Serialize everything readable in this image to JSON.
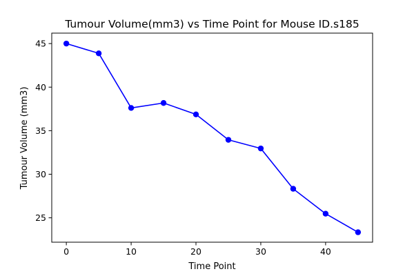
{
  "chart_data": {
    "type": "line",
    "title": "Tumour Volume(mm3) vs Time Point for Mouse ID.s185",
    "xlabel": "Time Point",
    "ylabel": "Tumour Volume (mm3)",
    "xlim": [
      -2.25,
      47.25
    ],
    "ylim": [
      22.2,
      46.2
    ],
    "xticks": [
      0,
      10,
      20,
      30,
      40
    ],
    "yticks": [
      25,
      30,
      35,
      40,
      45
    ],
    "grid": false,
    "series": [
      {
        "color": "#0000ff",
        "marker": "circle",
        "x": [
          0,
          5,
          10,
          15,
          20,
          25,
          30,
          35,
          40,
          45
        ],
        "y": [
          45.0,
          43.88,
          37.61,
          38.18,
          36.87,
          33.95,
          32.96,
          28.33,
          25.47,
          23.34
        ]
      }
    ]
  }
}
